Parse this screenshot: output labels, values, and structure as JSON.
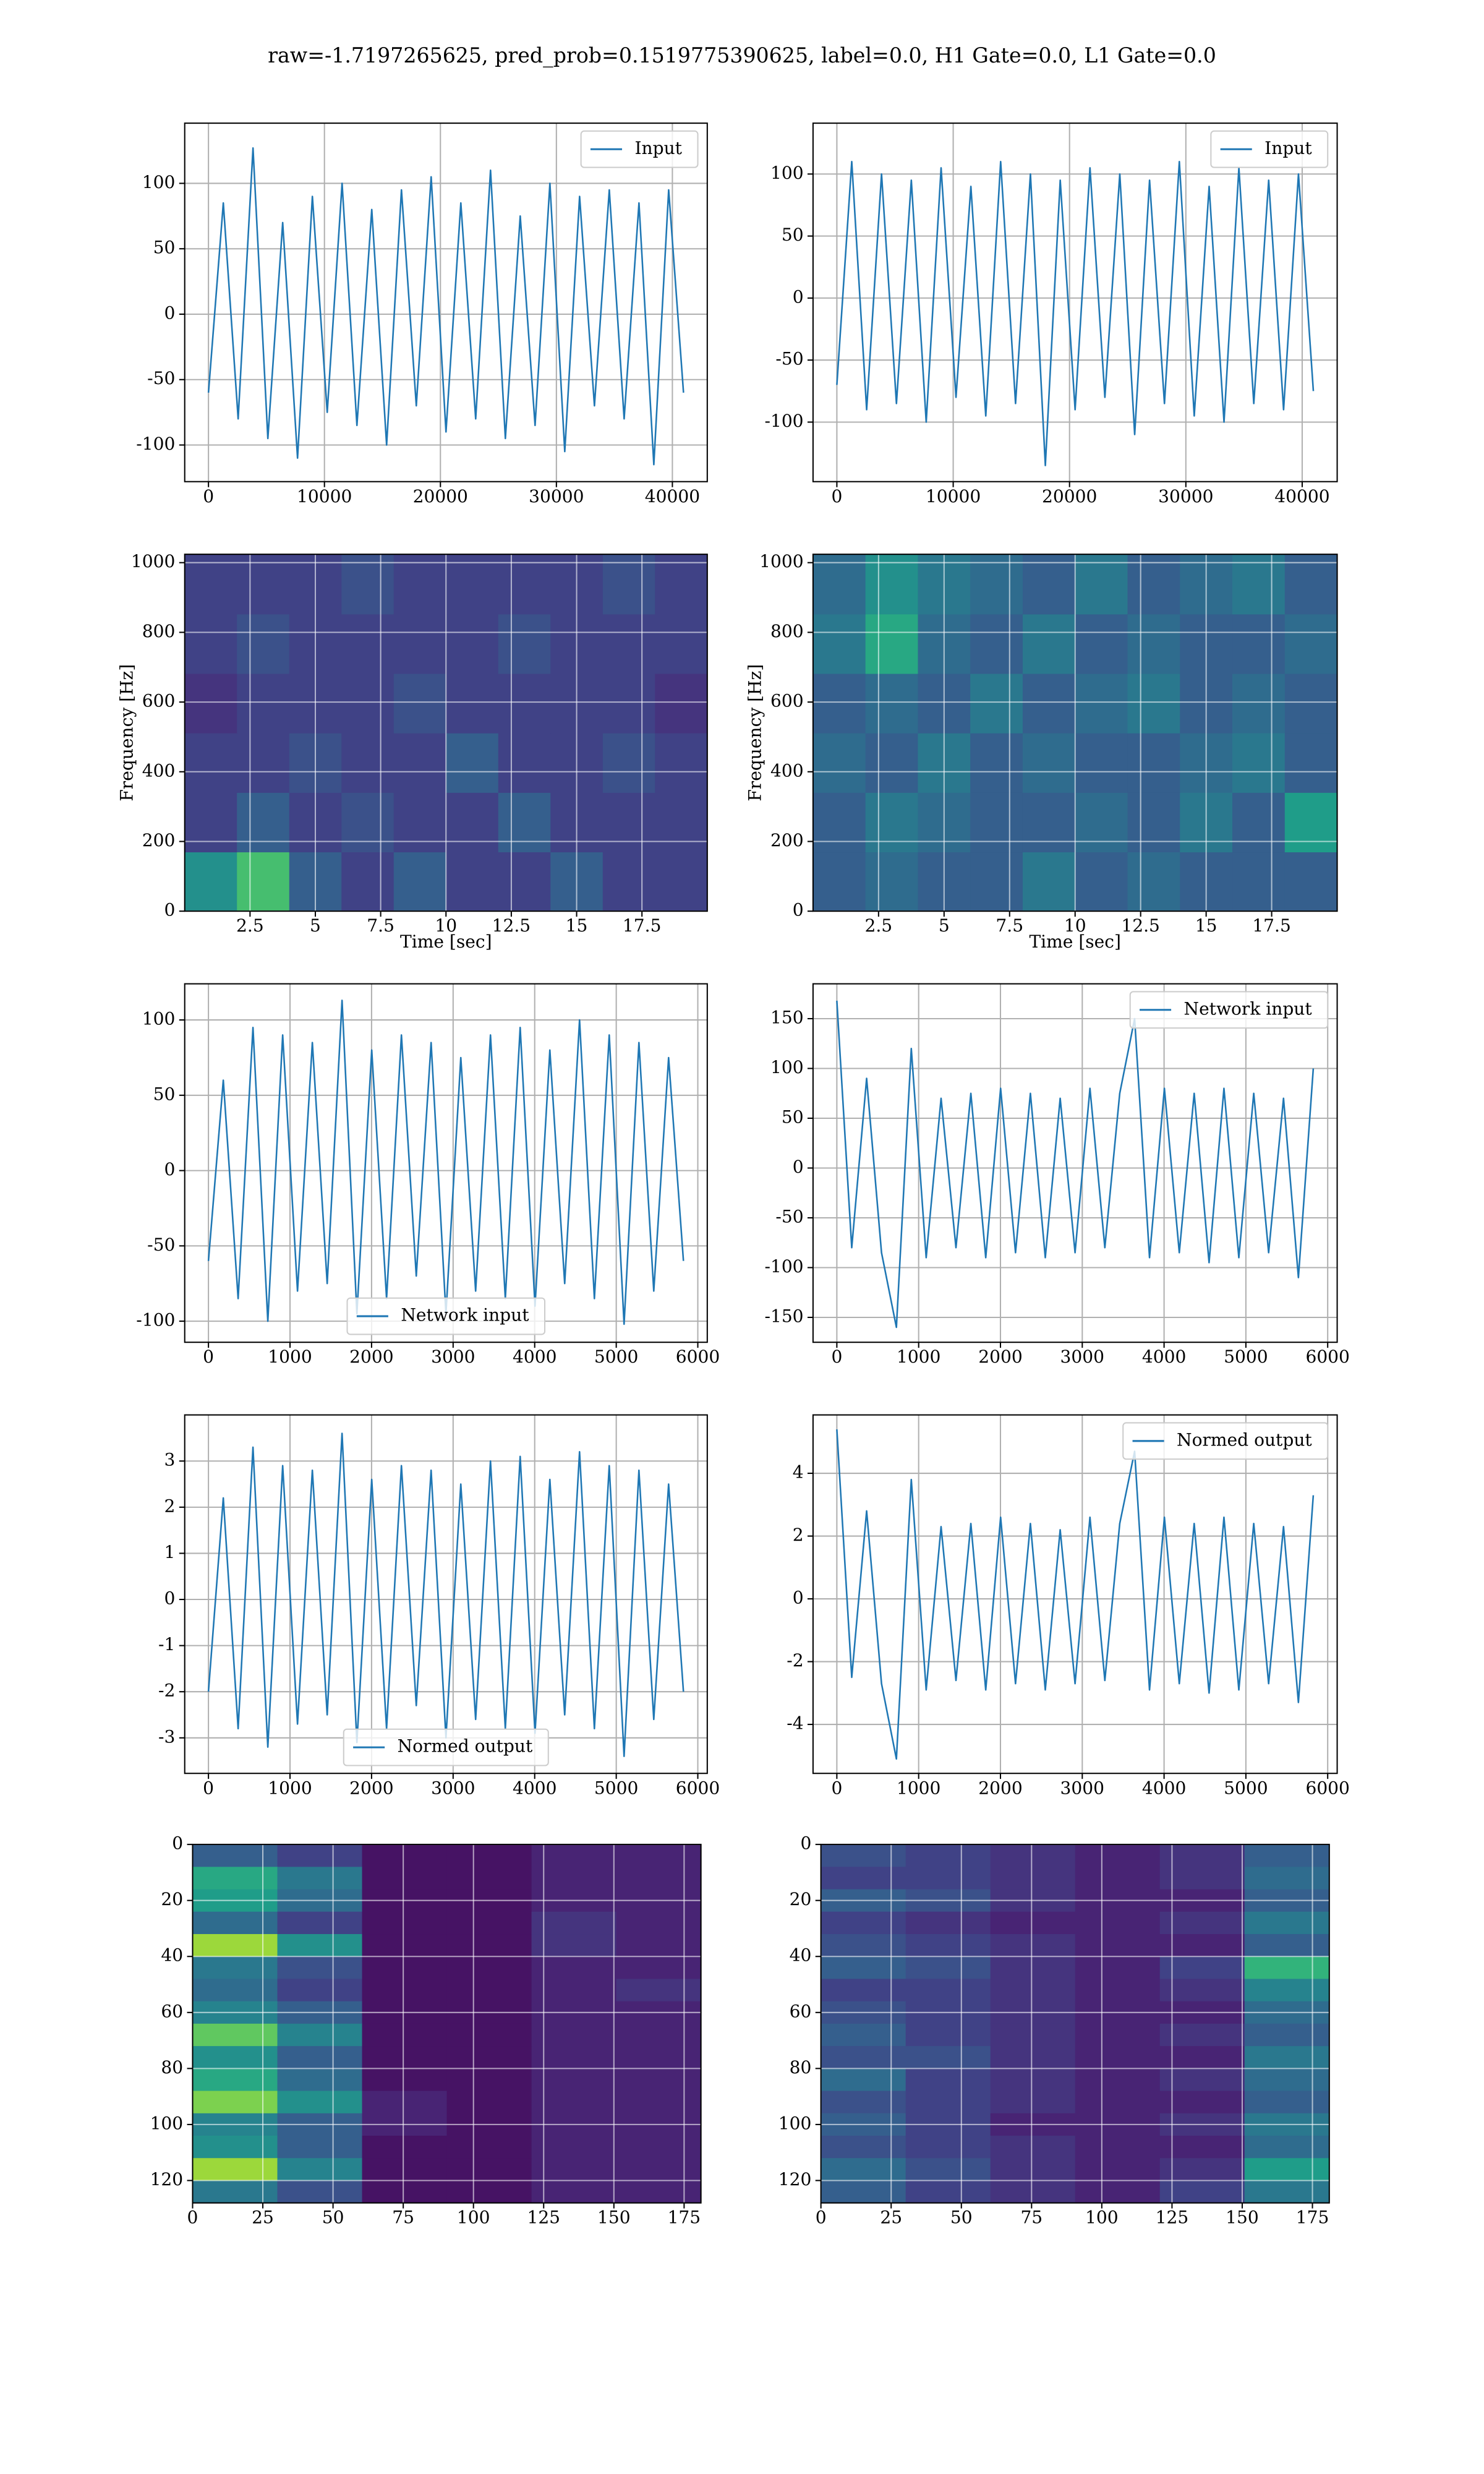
{
  "title": "raw=-1.7197265625, pred_prob=0.1519775390625, label=0.0, H1 Gate=0.0, L1 Gate=0.0",
  "chart_data": [
    {
      "type": "line",
      "x": [
        0,
        1280,
        2560,
        3840,
        5120,
        6400,
        7680,
        8960,
        10240,
        11520,
        12800,
        14080,
        15360,
        16640,
        17920,
        19200,
        20480,
        21760,
        23040,
        24320,
        25600,
        26880,
        28160,
        29440,
        30720,
        32000,
        33280,
        34560,
        35840,
        37120,
        38400,
        39680,
        40960
      ],
      "series": [
        {
          "name": "Input",
          "color": "#1f77b4",
          "values": [
            -60,
            85,
            -80,
            127,
            -95,
            70,
            -110,
            90,
            -75,
            100,
            -85,
            80,
            -100,
            95,
            -70,
            105,
            -90,
            85,
            -80,
            110,
            -95,
            75,
            -85,
            100,
            -105,
            90,
            -70,
            95,
            -80,
            85,
            -115,
            95,
            -60
          ]
        }
      ],
      "xlim": [
        -2048,
        43008
      ],
      "xticks": [
        0,
        10000,
        20000,
        30000,
        40000
      ],
      "ylim": [
        -128,
        146
      ],
      "yticks": [
        -100,
        -50,
        0,
        50,
        100
      ],
      "grid": true,
      "legend": "upper right"
    },
    {
      "type": "line",
      "x": [
        0,
        1280,
        2560,
        3840,
        5120,
        6400,
        7680,
        8960,
        10240,
        11520,
        12800,
        14080,
        15360,
        16640,
        17920,
        19200,
        20480,
        21760,
        23040,
        24320,
        25600,
        26880,
        28160,
        29440,
        30720,
        32000,
        33280,
        34560,
        35840,
        37120,
        38400,
        39680,
        40960
      ],
      "series": [
        {
          "name": "Input",
          "color": "#1f77b4",
          "values": [
            -70,
            110,
            -90,
            100,
            -85,
            95,
            -100,
            105,
            -80,
            90,
            -95,
            110,
            -85,
            100,
            -135,
            95,
            -90,
            105,
            -80,
            100,
            -110,
            95,
            -85,
            110,
            -95,
            90,
            -100,
            105,
            -85,
            95,
            -90,
            100,
            -75
          ]
        }
      ],
      "xlim": [
        -2048,
        43008
      ],
      "xticks": [
        0,
        10000,
        20000,
        30000,
        40000
      ],
      "ylim": [
        -148,
        141
      ],
      "yticks": [
        -100,
        -50,
        0,
        50,
        100
      ],
      "grid": true,
      "legend": "upper right"
    },
    {
      "type": "heatmap",
      "origin": "lower",
      "colormap": "viridis",
      "xlabel": "Time [sec]",
      "ylabel": "Frequency [Hz]",
      "values": [
        [
          0.5,
          0.7,
          0.3,
          0.2,
          0.3,
          0.2,
          0.2,
          0.3,
          0.2,
          0.2
        ],
        [
          0.2,
          0.3,
          0.2,
          0.25,
          0.2,
          0.2,
          0.3,
          0.2,
          0.2,
          0.2
        ],
        [
          0.2,
          0.2,
          0.25,
          0.2,
          0.2,
          0.3,
          0.2,
          0.2,
          0.25,
          0.2
        ],
        [
          0.15,
          0.2,
          0.2,
          0.2,
          0.25,
          0.2,
          0.2,
          0.2,
          0.2,
          0.15
        ],
        [
          0.2,
          0.25,
          0.2,
          0.2,
          0.2,
          0.2,
          0.25,
          0.2,
          0.2,
          0.2
        ],
        [
          0.2,
          0.2,
          0.2,
          0.25,
          0.2,
          0.2,
          0.2,
          0.2,
          0.25,
          0.2
        ]
      ],
      "xlim": [
        0,
        20
      ],
      "xticks": [
        2.5,
        5.0,
        7.5,
        10.0,
        12.5,
        15.0,
        17.5
      ],
      "ylim": [
        0,
        1024
      ],
      "yticks": [
        0,
        200,
        400,
        600,
        800,
        1000
      ],
      "grid": true
    },
    {
      "type": "heatmap",
      "origin": "lower",
      "colormap": "viridis",
      "xlabel": "Time [sec]",
      "ylabel": "Frequency [Hz]",
      "values": [
        [
          0.3,
          0.35,
          0.3,
          0.3,
          0.4,
          0.3,
          0.35,
          0.3,
          0.3,
          0.3
        ],
        [
          0.3,
          0.4,
          0.35,
          0.3,
          0.3,
          0.35,
          0.3,
          0.4,
          0.3,
          0.55
        ],
        [
          0.35,
          0.3,
          0.4,
          0.3,
          0.35,
          0.3,
          0.3,
          0.35,
          0.4,
          0.3
        ],
        [
          0.3,
          0.35,
          0.3,
          0.4,
          0.3,
          0.35,
          0.4,
          0.3,
          0.35,
          0.3
        ],
        [
          0.4,
          0.6,
          0.35,
          0.3,
          0.4,
          0.3,
          0.35,
          0.3,
          0.3,
          0.35
        ],
        [
          0.35,
          0.5,
          0.4,
          0.35,
          0.3,
          0.4,
          0.3,
          0.35,
          0.4,
          0.3
        ]
      ],
      "xlim": [
        0,
        20
      ],
      "xticks": [
        2.5,
        5.0,
        7.5,
        10.0,
        12.5,
        15.0,
        17.5
      ],
      "ylim": [
        0,
        1024
      ],
      "yticks": [
        0,
        200,
        400,
        600,
        800,
        1000
      ],
      "grid": true
    },
    {
      "type": "line",
      "x": [
        0,
        182,
        364,
        546,
        728,
        910,
        1092,
        1274,
        1456,
        1638,
        1820,
        2002,
        2184,
        2366,
        2548,
        2730,
        2912,
        3094,
        3276,
        3458,
        3640,
        3822,
        4004,
        4186,
        4368,
        4550,
        4732,
        4914,
        5096,
        5278,
        5460,
        5642,
        5824
      ],
      "series": [
        {
          "name": "Network input",
          "color": "#1f77b4",
          "values": [
            -60,
            60,
            -85,
            95,
            -100,
            90,
            -80,
            85,
            -75,
            113,
            -95,
            80,
            -85,
            90,
            -70,
            85,
            -95,
            75,
            -80,
            90,
            -85,
            95,
            -90,
            80,
            -75,
            100,
            -85,
            90,
            -102,
            85,
            -80,
            75,
            -60
          ]
        }
      ],
      "xlim": [
        -291,
        6116
      ],
      "xticks": [
        0,
        1000,
        2000,
        3000,
        4000,
        5000,
        6000
      ],
      "ylim": [
        -114,
        124
      ],
      "yticks": [
        -100,
        -50,
        0,
        50,
        100
      ],
      "grid": true,
      "legend": "lower center"
    },
    {
      "type": "line",
      "x": [
        0,
        182,
        364,
        546,
        728,
        910,
        1092,
        1274,
        1456,
        1638,
        1820,
        2002,
        2184,
        2366,
        2548,
        2730,
        2912,
        3094,
        3276,
        3458,
        3640,
        3822,
        4004,
        4186,
        4368,
        4550,
        4732,
        4914,
        5096,
        5278,
        5460,
        5642,
        5824
      ],
      "series": [
        {
          "name": "Network input",
          "color": "#1f77b4",
          "values": [
            168,
            -80,
            90,
            -85,
            -160,
            120,
            -90,
            70,
            -80,
            75,
            -90,
            80,
            -85,
            75,
            -90,
            70,
            -85,
            80,
            -80,
            75,
            150,
            -90,
            80,
            -85,
            75,
            -95,
            80,
            -90,
            75,
            -85,
            70,
            -110,
            100
          ]
        }
      ],
      "xlim": [
        -291,
        6116
      ],
      "xticks": [
        0,
        1000,
        2000,
        3000,
        4000,
        5000,
        6000
      ],
      "ylim": [
        -175,
        185
      ],
      "yticks": [
        -150,
        -100,
        -50,
        0,
        50,
        100,
        150
      ],
      "grid": true,
      "legend": "upper right"
    },
    {
      "type": "line",
      "x": [
        0,
        182,
        364,
        546,
        728,
        910,
        1092,
        1274,
        1456,
        1638,
        1820,
        2002,
        2184,
        2366,
        2548,
        2730,
        2912,
        3094,
        3276,
        3458,
        3640,
        3822,
        4004,
        4186,
        4368,
        4550,
        4732,
        4914,
        5096,
        5278,
        5460,
        5642,
        5824
      ],
      "series": [
        {
          "name": "Normed output",
          "color": "#1f77b4",
          "values": [
            -2.0,
            2.2,
            -2.8,
            3.3,
            -3.2,
            2.9,
            -2.7,
            2.8,
            -2.5,
            3.6,
            -3.1,
            2.6,
            -2.8,
            2.9,
            -2.3,
            2.8,
            -3.0,
            2.5,
            -2.6,
            3.0,
            -2.8,
            3.1,
            -2.9,
            2.6,
            -2.5,
            3.2,
            -2.8,
            2.9,
            -3.4,
            2.8,
            -2.6,
            2.5,
            -2.0
          ]
        }
      ],
      "xlim": [
        -291,
        6116
      ],
      "xticks": [
        0,
        1000,
        2000,
        3000,
        4000,
        5000,
        6000
      ],
      "ylim": [
        -3.77,
        4.0
      ],
      "yticks": [
        -3,
        -2,
        -1,
        0,
        1,
        2,
        3
      ],
      "grid": true,
      "legend": "lower center"
    },
    {
      "type": "line",
      "x": [
        0,
        182,
        364,
        546,
        728,
        910,
        1092,
        1274,
        1456,
        1638,
        1820,
        2002,
        2184,
        2366,
        2548,
        2730,
        2912,
        3094,
        3276,
        3458,
        3640,
        3822,
        4004,
        4186,
        4368,
        4550,
        4732,
        4914,
        5096,
        5278,
        5460,
        5642,
        5824
      ],
      "series": [
        {
          "name": "Normed output",
          "color": "#1f77b4",
          "values": [
            5.4,
            -2.5,
            2.8,
            -2.7,
            -5.1,
            3.8,
            -2.9,
            2.3,
            -2.6,
            2.4,
            -2.9,
            2.6,
            -2.7,
            2.4,
            -2.9,
            2.2,
            -2.7,
            2.6,
            -2.6,
            2.4,
            4.7,
            -2.9,
            2.6,
            -2.7,
            2.4,
            -3.0,
            2.6,
            -2.9,
            2.4,
            -2.7,
            2.3,
            -3.3,
            3.3
          ]
        }
      ],
      "xlim": [
        -291,
        6116
      ],
      "xticks": [
        0,
        1000,
        2000,
        3000,
        4000,
        5000,
        6000
      ],
      "ylim": [
        -5.56,
        5.86
      ],
      "yticks": [
        -4,
        -2,
        0,
        2,
        4
      ],
      "grid": true,
      "legend": "upper right"
    },
    {
      "type": "heatmap",
      "origin": "upper",
      "colormap": "viridis",
      "values": [
        [
          0.3,
          0.2,
          0.05,
          0.05,
          0.1,
          0.1
        ],
        [
          0.6,
          0.4,
          0.05,
          0.05,
          0.1,
          0.1
        ],
        [
          0.55,
          0.35,
          0.05,
          0.05,
          0.1,
          0.1
        ],
        [
          0.35,
          0.2,
          0.05,
          0.05,
          0.15,
          0.1
        ],
        [
          0.85,
          0.5,
          0.05,
          0.05,
          0.15,
          0.1
        ],
        [
          0.4,
          0.25,
          0.05,
          0.05,
          0.1,
          0.1
        ],
        [
          0.35,
          0.2,
          0.05,
          0.05,
          0.1,
          0.15
        ],
        [
          0.45,
          0.3,
          0.05,
          0.05,
          0.1,
          0.1
        ],
        [
          0.75,
          0.45,
          0.05,
          0.05,
          0.1,
          0.1
        ],
        [
          0.5,
          0.3,
          0.05,
          0.05,
          0.1,
          0.1
        ],
        [
          0.6,
          0.35,
          0.05,
          0.05,
          0.1,
          0.1
        ],
        [
          0.8,
          0.5,
          0.1,
          0.05,
          0.1,
          0.1
        ],
        [
          0.45,
          0.3,
          0.1,
          0.05,
          0.1,
          0.1
        ],
        [
          0.5,
          0.3,
          0.05,
          0.05,
          0.1,
          0.1
        ],
        [
          0.85,
          0.45,
          0.05,
          0.05,
          0.1,
          0.1
        ],
        [
          0.4,
          0.25,
          0.05,
          0.05,
          0.1,
          0.1
        ]
      ],
      "xlim": [
        0,
        181
      ],
      "xticks": [
        0,
        25,
        50,
        75,
        100,
        125,
        150,
        175
      ],
      "ylim": [
        128,
        0
      ],
      "yticks": [
        0,
        20,
        40,
        60,
        80,
        100,
        120
      ],
      "grid": true
    },
    {
      "type": "heatmap",
      "origin": "upper",
      "colormap": "viridis",
      "values": [
        [
          0.25,
          0.2,
          0.15,
          0.1,
          0.15,
          0.3
        ],
        [
          0.2,
          0.2,
          0.15,
          0.1,
          0.15,
          0.35
        ],
        [
          0.3,
          0.25,
          0.15,
          0.1,
          0.1,
          0.3
        ],
        [
          0.2,
          0.15,
          0.1,
          0.1,
          0.15,
          0.4
        ],
        [
          0.25,
          0.2,
          0.15,
          0.1,
          0.1,
          0.3
        ],
        [
          0.3,
          0.25,
          0.15,
          0.1,
          0.2,
          0.65
        ],
        [
          0.2,
          0.2,
          0.15,
          0.1,
          0.15,
          0.45
        ],
        [
          0.25,
          0.2,
          0.15,
          0.1,
          0.1,
          0.35
        ],
        [
          0.3,
          0.2,
          0.15,
          0.1,
          0.15,
          0.3
        ],
        [
          0.25,
          0.25,
          0.15,
          0.1,
          0.1,
          0.4
        ],
        [
          0.35,
          0.2,
          0.15,
          0.1,
          0.15,
          0.35
        ],
        [
          0.25,
          0.2,
          0.15,
          0.1,
          0.1,
          0.3
        ],
        [
          0.3,
          0.2,
          0.1,
          0.1,
          0.15,
          0.4
        ],
        [
          0.25,
          0.2,
          0.15,
          0.1,
          0.1,
          0.35
        ],
        [
          0.35,
          0.25,
          0.15,
          0.1,
          0.15,
          0.55
        ],
        [
          0.3,
          0.2,
          0.15,
          0.1,
          0.2,
          0.4
        ]
      ],
      "xlim": [
        0,
        181
      ],
      "xticks": [
        0,
        25,
        50,
        75,
        100,
        125,
        150,
        175
      ],
      "ylim": [
        128,
        0
      ],
      "yticks": [
        0,
        20,
        40,
        60,
        80,
        100,
        120
      ],
      "grid": true
    }
  ]
}
